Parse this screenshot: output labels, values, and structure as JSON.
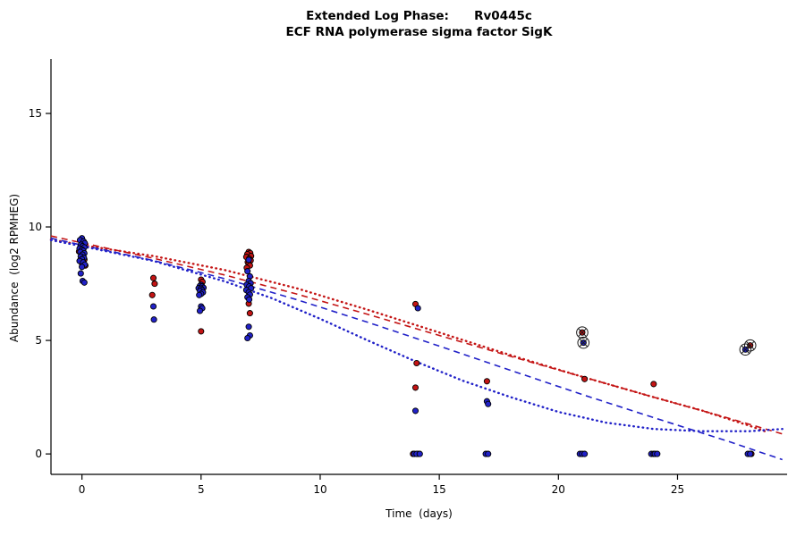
{
  "title": {
    "line1": "Extended Log Phase:      Rv0445c",
    "line2": "ECF RNA polymerase sigma factor SigK"
  },
  "chart_data": {
    "type": "scatter",
    "title": "Extended Log Phase: Rv0445c — ECF RNA polymerase sigma factor SigK",
    "xlabel": "Time  (days)",
    "ylabel": "Abundance  (log2 RPMHEG)",
    "xlim": [
      -1.3,
      29.6
    ],
    "ylim": [
      -0.9,
      17.4
    ],
    "x_ticks": [
      0,
      5,
      10,
      15,
      20,
      25
    ],
    "y_ticks": [
      0,
      5,
      10,
      15
    ],
    "grid": false,
    "legend": "none",
    "colors": {
      "red": "#C41414",
      "blue": "#2121C8",
      "point_stroke": "#000000",
      "axis": "#000000",
      "flag_marker": "#1a1a1a"
    },
    "series": [
      {
        "name": "red-points",
        "color": "red",
        "points": [
          [
            -0.12,
            8.92
          ],
          [
            0.04,
            8.76
          ],
          [
            0.1,
            8.56
          ],
          [
            0.0,
            8.4
          ],
          [
            0.14,
            8.3
          ],
          [
            3.0,
            7.75
          ],
          [
            3.05,
            7.5
          ],
          [
            2.95,
            7.0
          ],
          [
            5.0,
            7.68
          ],
          [
            5.06,
            7.58
          ],
          [
            4.94,
            7.25
          ],
          [
            5.0,
            5.4
          ],
          [
            7.0,
            8.9
          ],
          [
            7.06,
            8.85
          ],
          [
            6.94,
            8.8
          ],
          [
            7.1,
            8.72
          ],
          [
            6.9,
            8.68
          ],
          [
            7.02,
            8.6
          ],
          [
            7.08,
            8.52
          ],
          [
            6.96,
            8.45
          ],
          [
            7.0,
            8.38
          ],
          [
            7.05,
            8.3
          ],
          [
            6.92,
            8.2
          ],
          [
            7.0,
            6.62
          ],
          [
            7.05,
            6.2
          ],
          [
            14.0,
            6.6
          ],
          [
            14.05,
            4.0
          ],
          [
            14.0,
            2.92
          ],
          [
            13.9,
            0
          ],
          [
            14.1,
            0
          ],
          [
            17.0,
            3.2
          ],
          [
            21.1,
            3.3
          ],
          [
            24.0,
            3.08
          ],
          [
            28.1,
            0
          ]
        ]
      },
      {
        "name": "blue-points",
        "color": "blue",
        "points": [
          [
            0.0,
            9.5
          ],
          [
            -0.08,
            9.42
          ],
          [
            0.07,
            9.36
          ],
          [
            0.12,
            9.28
          ],
          [
            -0.04,
            9.22
          ],
          [
            0.02,
            9.15
          ],
          [
            0.1,
            9.1
          ],
          [
            -0.1,
            9.05
          ],
          [
            0.0,
            9.0
          ],
          [
            0.05,
            8.95
          ],
          [
            -0.07,
            8.9
          ],
          [
            0.1,
            8.84
          ],
          [
            0.02,
            8.78
          ],
          [
            -0.05,
            8.7
          ],
          [
            0.08,
            8.64
          ],
          [
            0.0,
            8.58
          ],
          [
            -0.1,
            8.5
          ],
          [
            0.05,
            8.44
          ],
          [
            0.12,
            8.34
          ],
          [
            0.0,
            8.24
          ],
          [
            -0.05,
            7.95
          ],
          [
            0.03,
            7.62
          ],
          [
            0.1,
            7.55
          ],
          [
            3.0,
            6.5
          ],
          [
            3.02,
            5.92
          ],
          [
            5.0,
            7.45
          ],
          [
            4.95,
            7.4
          ],
          [
            5.05,
            7.38
          ],
          [
            5.1,
            7.32
          ],
          [
            4.9,
            7.3
          ],
          [
            5.0,
            7.28
          ],
          [
            5.04,
            7.22
          ],
          [
            4.96,
            7.18
          ],
          [
            5.08,
            7.12
          ],
          [
            5.0,
            7.05
          ],
          [
            4.92,
            7.0
          ],
          [
            5.0,
            6.5
          ],
          [
            5.05,
            6.42
          ],
          [
            4.95,
            6.3
          ],
          [
            7.0,
            8.55
          ],
          [
            6.95,
            8.05
          ],
          [
            7.05,
            7.82
          ],
          [
            7.0,
            7.62
          ],
          [
            7.08,
            7.52
          ],
          [
            6.92,
            7.45
          ],
          [
            7.02,
            7.38
          ],
          [
            7.1,
            7.3
          ],
          [
            6.9,
            7.22
          ],
          [
            7.0,
            7.12
          ],
          [
            7.05,
            7.02
          ],
          [
            6.95,
            6.9
          ],
          [
            7.02,
            6.8
          ],
          [
            7.0,
            5.6
          ],
          [
            7.05,
            5.22
          ],
          [
            6.95,
            5.1
          ],
          [
            14.1,
            6.42
          ],
          [
            14.0,
            1.9
          ],
          [
            13.95,
            0
          ],
          [
            14.05,
            0
          ],
          [
            14.18,
            0
          ],
          [
            17.0,
            2.32
          ],
          [
            17.05,
            2.2
          ],
          [
            16.95,
            0
          ],
          [
            17.05,
            0
          ],
          [
            20.9,
            0
          ],
          [
            21.0,
            0
          ],
          [
            21.1,
            0
          ],
          [
            23.9,
            0
          ],
          [
            24.0,
            0
          ],
          [
            24.05,
            0
          ],
          [
            24.15,
            0
          ],
          [
            27.95,
            0
          ],
          [
            28.05,
            0
          ]
        ]
      }
    ],
    "flagged_points": [
      {
        "x": 21.0,
        "y": 5.35,
        "color": "red"
      },
      {
        "x": 21.05,
        "y": 4.9,
        "color": "blue"
      },
      {
        "x": 28.05,
        "y": 4.78,
        "color": "red"
      },
      {
        "x": 27.85,
        "y": 4.6,
        "color": "blue"
      }
    ],
    "curves": [
      {
        "name": "red-dashed-fit",
        "color": "red",
        "style": "dashed",
        "points": [
          [
            -1.3,
            9.6
          ],
          [
            0,
            9.3
          ],
          [
            3,
            8.62
          ],
          [
            6,
            7.88
          ],
          [
            9,
            7.05
          ],
          [
            12,
            6.15
          ],
          [
            15,
            5.22
          ],
          [
            18,
            4.3
          ],
          [
            21,
            3.4
          ],
          [
            24,
            2.5
          ],
          [
            27,
            1.62
          ],
          [
            29.5,
            0.85
          ]
        ]
      },
      {
        "name": "red-dotted-fit",
        "color": "red",
        "style": "dotted",
        "points": [
          [
            -1.3,
            9.45
          ],
          [
            0,
            9.2
          ],
          [
            3,
            8.72
          ],
          [
            6,
            8.1
          ],
          [
            9,
            7.3
          ],
          [
            12,
            6.35
          ],
          [
            15,
            5.35
          ],
          [
            18,
            4.35
          ],
          [
            21,
            3.4
          ],
          [
            24,
            2.5
          ],
          [
            26,
            1.92
          ],
          [
            28,
            1.25
          ],
          [
            28.8,
            0.95
          ]
        ]
      },
      {
        "name": "blue-dashed-fit",
        "color": "blue",
        "style": "dashed",
        "points": [
          [
            -1.3,
            9.5
          ],
          [
            0,
            9.2
          ],
          [
            3,
            8.52
          ],
          [
            6,
            7.72
          ],
          [
            9,
            6.8
          ],
          [
            12,
            5.8
          ],
          [
            15,
            4.75
          ],
          [
            18,
            3.68
          ],
          [
            21,
            2.62
          ],
          [
            24,
            1.6
          ],
          [
            27,
            0.6
          ],
          [
            29.4,
            -0.25
          ]
        ]
      },
      {
        "name": "blue-dotted-fit",
        "color": "blue",
        "style": "dotted",
        "points": [
          [
            -1.3,
            9.42
          ],
          [
            0,
            9.15
          ],
          [
            3,
            8.5
          ],
          [
            6,
            7.6
          ],
          [
            8,
            6.85
          ],
          [
            10,
            5.95
          ],
          [
            12,
            5.0
          ],
          [
            14,
            4.08
          ],
          [
            16,
            3.22
          ],
          [
            18,
            2.5
          ],
          [
            20,
            1.85
          ],
          [
            22,
            1.38
          ],
          [
            24,
            1.1
          ],
          [
            26,
            1.0
          ],
          [
            28,
            1.0
          ],
          [
            29.4,
            1.1
          ]
        ]
      }
    ]
  }
}
